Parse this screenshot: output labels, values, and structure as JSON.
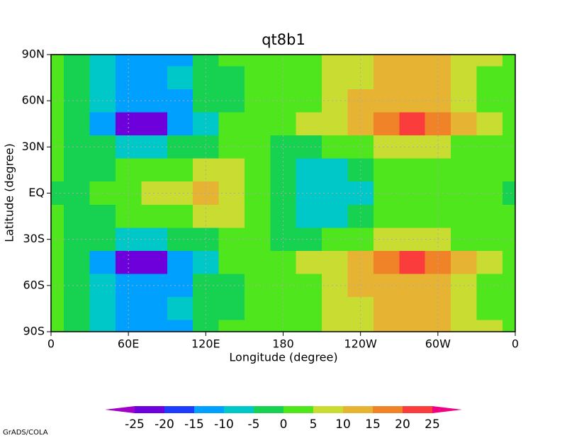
{
  "chart_data": {
    "type": "contour",
    "title": "qt8b1",
    "xlabel": "Longitude (degree)",
    "ylabel": "Latitude (degree)",
    "x": [
      0,
      20,
      40,
      60,
      80,
      100,
      120,
      140,
      160,
      180,
      200,
      220,
      240,
      260,
      280,
      300,
      320,
      340,
      360
    ],
    "y": [
      90,
      75,
      60,
      45,
      30,
      15,
      0,
      -15,
      -30,
      -45,
      -60,
      -75,
      -90
    ],
    "z": [
      [
        2,
        -2,
        -7,
        -11,
        -12,
        -10,
        -4,
        1,
        2,
        3,
        4,
        7,
        9,
        12,
        13,
        12,
        8,
        6,
        3
      ],
      [
        2,
        -3,
        -8,
        -12,
        -12,
        -9,
        -3,
        0,
        2,
        2,
        5,
        8,
        10,
        12,
        13,
        12,
        8,
        5,
        2
      ],
      [
        2,
        -3,
        -9,
        -14,
        -14,
        -10,
        -4,
        0,
        2,
        2,
        5,
        8,
        11,
        14,
        15,
        13,
        9,
        5,
        2
      ],
      [
        2,
        -3,
        -12,
        -22,
        -23,
        -14,
        -5,
        1,
        2,
        3,
        6,
        10,
        15,
        19,
        22,
        18,
        12,
        6,
        2
      ],
      [
        3,
        0,
        -4,
        -7,
        -7,
        -4,
        -1,
        2,
        3,
        0,
        -2,
        1,
        5,
        8,
        9,
        7,
        4,
        3,
        3
      ],
      [
        1,
        -1,
        0,
        2,
        3,
        5,
        7,
        7,
        4,
        -3,
        -6,
        -6,
        -3,
        2,
        3,
        2,
        2,
        1,
        1
      ],
      [
        -1,
        -1,
        1,
        3,
        6,
        9,
        11,
        10,
        4,
        -4,
        -7,
        -7,
        -5,
        1,
        2,
        2,
        1,
        1,
        -1
      ],
      [
        1,
        -1,
        0,
        2,
        3,
        5,
        7,
        7,
        4,
        -3,
        -6,
        -6,
        -3,
        2,
        3,
        2,
        2,
        1,
        1
      ],
      [
        3,
        0,
        -4,
        -7,
        -7,
        -4,
        -1,
        2,
        3,
        0,
        -2,
        1,
        5,
        8,
        9,
        7,
        4,
        3,
        3
      ],
      [
        2,
        -3,
        -12,
        -22,
        -23,
        -14,
        -5,
        1,
        2,
        3,
        6,
        10,
        15,
        19,
        22,
        18,
        12,
        6,
        2
      ],
      [
        2,
        -3,
        -9,
        -14,
        -14,
        -10,
        -4,
        0,
        2,
        2,
        5,
        8,
        11,
        14,
        15,
        13,
        9,
        5,
        2
      ],
      [
        2,
        -3,
        -8,
        -12,
        -12,
        -9,
        -3,
        0,
        2,
        2,
        5,
        8,
        10,
        12,
        13,
        12,
        8,
        5,
        2
      ],
      [
        2,
        -2,
        -7,
        -11,
        -12,
        -10,
        -4,
        1,
        2,
        3,
        4,
        7,
        9,
        12,
        13,
        12,
        8,
        6,
        3
      ]
    ],
    "levels": [
      -25,
      -20,
      -15,
      -10,
      -5,
      0,
      5,
      10,
      15,
      20,
      25
    ],
    "colors": [
      "#a000c8",
      "#6e00dc",
      "#1e3cff",
      "#00a0ff",
      "#00c8c8",
      "#16d250",
      "#50e61e",
      "#c8dc32",
      "#e6b432",
      "#f08228",
      "#fa3c3c",
      "#f00082"
    ],
    "xlim": [
      0,
      360
    ],
    "ylim": [
      -90,
      90
    ],
    "xticks": [
      0,
      {
        "value": 60,
        "label": "60E"
      },
      {
        "value": 120,
        "label": "120E"
      },
      180,
      {
        "value": 240,
        "label": "120W"
      },
      {
        "value": 300,
        "label": "60W"
      },
      {
        "value": 360,
        "label": "0"
      }
    ],
    "yticks": [
      {
        "value": -90,
        "label": "90S"
      },
      {
        "value": -60,
        "label": "60S"
      },
      {
        "value": -30,
        "label": "30S"
      },
      {
        "value": 0,
        "label": "EQ"
      },
      {
        "value": 30,
        "label": "30N"
      },
      {
        "value": 60,
        "label": "60N"
      },
      {
        "value": 90,
        "label": "90N"
      }
    ],
    "grid": true,
    "footer": "GrADS/COLA"
  }
}
